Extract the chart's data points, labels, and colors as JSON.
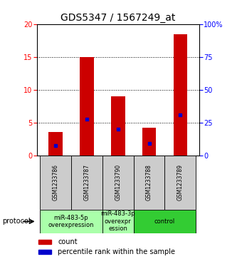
{
  "title": "GDS5347 / 1567249_at",
  "samples": [
    "GSM1233786",
    "GSM1233787",
    "GSM1233790",
    "GSM1233788",
    "GSM1233789"
  ],
  "bar_heights": [
    3.6,
    15.0,
    9.0,
    4.2,
    18.5
  ],
  "blue_positions": [
    1.5,
    5.5,
    4.0,
    1.8,
    6.2
  ],
  "bar_color": "#cc0000",
  "blue_color": "#0000cc",
  "ylim_left": [
    0,
    20
  ],
  "ylim_right": [
    0,
    100
  ],
  "yticks_left": [
    0,
    5,
    10,
    15,
    20
  ],
  "yticks_right": [
    0,
    25,
    50,
    75,
    100
  ],
  "ytick_labels_right": [
    "0",
    "25",
    "50",
    "75",
    "100%"
  ],
  "groups": [
    {
      "label": "miR-483-5p\noverexpression",
      "indices": [
        0,
        1
      ],
      "color": "#aaffaa"
    },
    {
      "label": "miR-483-3p\noverexpr\nession",
      "indices": [
        2
      ],
      "color": "#aaffaa"
    },
    {
      "label": "control",
      "indices": [
        3,
        4
      ],
      "color": "#33cc33"
    }
  ],
  "protocol_label": "protocol",
  "legend_count_label": "count",
  "legend_percentile_label": "percentile rank within the sample",
  "bg_color": "#ffffff",
  "plot_bg_color": "#ffffff",
  "sample_box_color": "#cccccc",
  "bar_width": 0.45,
  "title_fontsize": 10,
  "tick_fontsize": 7,
  "sample_fontsize": 5.5,
  "group_fontsize": 6,
  "legend_fontsize": 7
}
